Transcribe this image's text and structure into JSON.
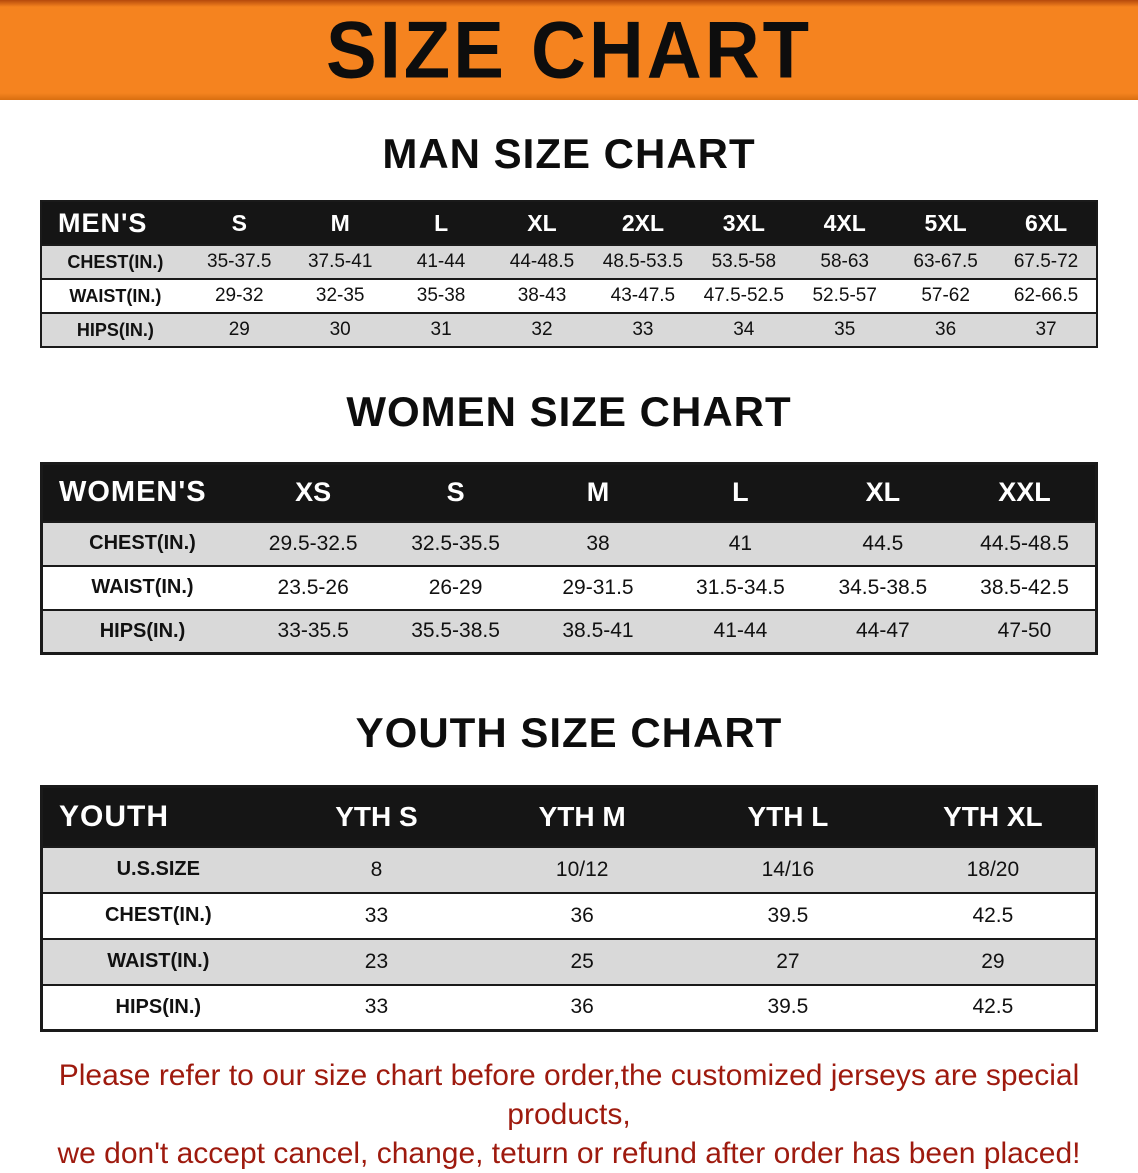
{
  "banner": {
    "title": "SIZE CHART"
  },
  "sections": [
    {
      "heading": "MAN SIZE CHART",
      "table": {
        "corner": "MEN'S",
        "columns": [
          "S",
          "M",
          "L",
          "XL",
          "2XL",
          "3XL",
          "4XL",
          "5XL",
          "6XL"
        ],
        "rows": [
          {
            "label": "CHEST(IN.)",
            "values": [
              "35-37.5",
              "37.5-41",
              "41-44",
              "44-48.5",
              "48.5-53.5",
              "53.5-58",
              "58-63",
              "63-67.5",
              "67.5-72"
            ]
          },
          {
            "label": "WAIST(IN.)",
            "values": [
              "29-32",
              "32-35",
              "35-38",
              "38-43",
              "43-47.5",
              "47.5-52.5",
              "52.5-57",
              "57-62",
              "62-66.5"
            ]
          },
          {
            "label": "HIPS(IN.)",
            "values": [
              "29",
              "30",
              "31",
              "32",
              "33",
              "34",
              "35",
              "36",
              "37"
            ]
          }
        ]
      }
    },
    {
      "heading": "WOMEN SIZE CHART",
      "table": {
        "corner": "WOMEN'S",
        "columns": [
          "XS",
          "S",
          "M",
          "L",
          "XL",
          "XXL"
        ],
        "rows": [
          {
            "label": "CHEST(IN.)",
            "values": [
              "29.5-32.5",
              "32.5-35.5",
              "38",
              "41",
              "44.5",
              "44.5-48.5"
            ]
          },
          {
            "label": "WAIST(IN.)",
            "values": [
              "23.5-26",
              "26-29",
              "29-31.5",
              "31.5-34.5",
              "34.5-38.5",
              "38.5-42.5"
            ]
          },
          {
            "label": "HIPS(IN.)",
            "values": [
              "33-35.5",
              "35.5-38.5",
              "38.5-41",
              "41-44",
              "44-47",
              "47-50"
            ]
          }
        ]
      }
    },
    {
      "heading": "YOUTH SIZE CHART",
      "table": {
        "corner": "YOUTH",
        "columns": [
          "YTH S",
          "YTH M",
          "YTH L",
          "YTH XL"
        ],
        "rows": [
          {
            "label": "U.S.SIZE",
            "values": [
              "8",
              "10/12",
              "14/16",
              "18/20"
            ]
          },
          {
            "label": "CHEST(IN.)",
            "values": [
              "33",
              "36",
              "39.5",
              "42.5"
            ]
          },
          {
            "label": "WAIST(IN.)",
            "values": [
              "23",
              "25",
              "27",
              "29"
            ]
          },
          {
            "label": "HIPS(IN.)",
            "values": [
              "33",
              "36",
              "39.5",
              "42.5"
            ]
          }
        ]
      }
    }
  ],
  "footer": {
    "line1": "Please refer to our size chart before order,the customized jerseys are special products,",
    "line2": "we don't accept cancel, change, teturn or refund after order has been placed!"
  },
  "colors": {
    "banner_orange": "#f5831f",
    "header_black": "#151515",
    "row_gray": "#d9d9d9",
    "disclaimer_red": "#9e1a0e"
  }
}
